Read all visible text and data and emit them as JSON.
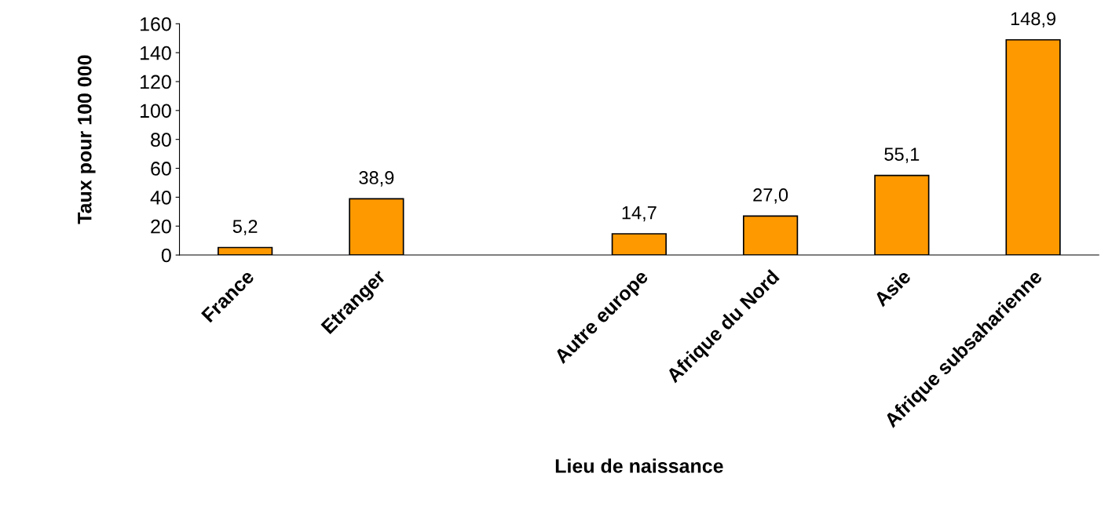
{
  "chart_data": {
    "type": "bar",
    "xlabel": "Lieu de naissance",
    "ylabel": "Taux pour 100 000",
    "categories": [
      "France",
      "Etranger",
      null,
      "Autre europe",
      "Afrique du Nord",
      "Asie",
      "Afrique subsaharienne"
    ],
    "values": [
      5.2,
      38.9,
      null,
      14.7,
      27.0,
      55.1,
      148.9
    ],
    "value_labels": [
      "5,2",
      "38,9",
      null,
      "14,7",
      "27,0",
      "55,1",
      "148,9"
    ],
    "color": "#ff9900",
    "ylim": [
      0,
      160
    ],
    "yticks": [
      0,
      20,
      40,
      60,
      80,
      100,
      120,
      140,
      160
    ],
    "grid": false,
    "legend": false
  }
}
